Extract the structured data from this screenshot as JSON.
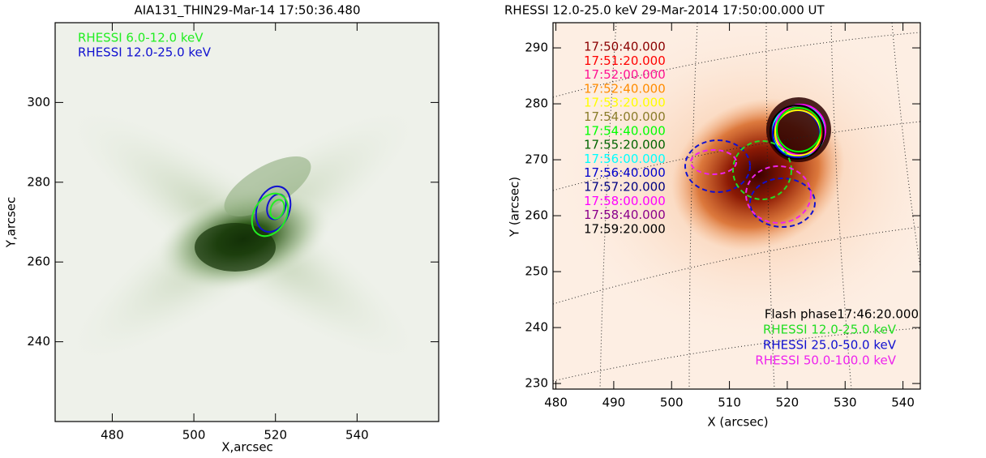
{
  "chart_data": [
    {
      "type": "image",
      "title": "AIA131_THIN29-Mar-14 17:50:36.480",
      "xlabel": "X,arcsec",
      "ylabel": "Y,arcsec",
      "xlim": [
        466,
        560
      ],
      "ylim": [
        220,
        320
      ],
      "xticks": [
        480,
        500,
        520,
        540
      ],
      "yticks": [
        240,
        260,
        280,
        300
      ],
      "series": [
        {
          "name": "RHESSI 6.0-12.0 keV",
          "color": "#22ee22"
        },
        {
          "name": "RHESSI 12.0-25.0 keV",
          "color": "#1010d0"
        }
      ]
    },
    {
      "type": "image",
      "title": "RHESSI 12.0-25.0 keV 29-Mar-2014 17:50:00.000 UT",
      "xlabel": "X (arcsec)",
      "ylabel": "Y (arcsec)",
      "xlim": [
        479.5,
        543
      ],
      "ylim": [
        229,
        294.5
      ],
      "xticks": [
        480,
        490,
        500,
        510,
        520,
        530,
        540
      ],
      "yticks": [
        230,
        240,
        250,
        260,
        270,
        280,
        290
      ],
      "series": [
        {
          "name": "17:50:40.000",
          "color": "#8b0000"
        },
        {
          "name": "17:51:20.000",
          "color": "#ff0000"
        },
        {
          "name": "17:52:00.000",
          "color": "#ff1493"
        },
        {
          "name": "17:52:40.000",
          "color": "#ff8c00"
        },
        {
          "name": "17:53:20.000",
          "color": "#ffff00"
        },
        {
          "name": "17:54:00.000",
          "color": "#8b7d2a"
        },
        {
          "name": "17:54:40.000",
          "color": "#00ff00"
        },
        {
          "name": "17:55:20.000",
          "color": "#006400"
        },
        {
          "name": "17:56:00.000",
          "color": "#00ffff"
        },
        {
          "name": "17:56:40.000",
          "color": "#0000cd"
        },
        {
          "name": "17:57:20.000",
          "color": "#000080"
        },
        {
          "name": "17:58:00.000",
          "color": "#ff00ff"
        },
        {
          "name": "17:58:40.000",
          "color": "#8b008b"
        },
        {
          "name": "17:59:20.000",
          "color": "#000000"
        }
      ],
      "annotation": "Flash phase17:46:20.000",
      "bands": [
        {
          "name": "RHESSI 12.0-25.0 keV",
          "color": "#22dd22"
        },
        {
          "name": "RHESSI 25.0-50.0 keV",
          "color": "#1010d0"
        },
        {
          "name": "RHESSI 50.0-100.0 keV",
          "color": "#ee22ee"
        }
      ]
    }
  ]
}
